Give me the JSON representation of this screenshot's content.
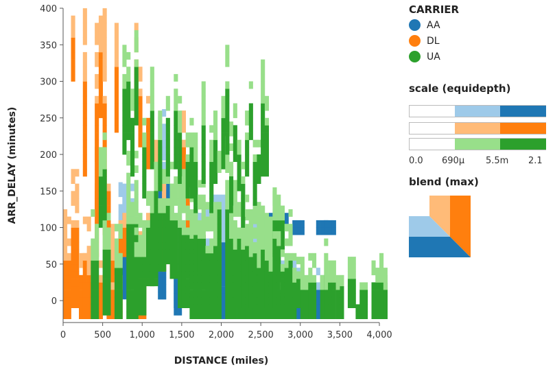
{
  "chart_data": {
    "type": "heatmap",
    "title": "",
    "xlabel": "DISTANCE (miles)",
    "ylabel": "ARR_DELAY (minutes)",
    "xlim": [
      0,
      4000
    ],
    "ylim": [
      -30,
      400
    ],
    "x_ticks": [
      0,
      500,
      1000,
      1500,
      2000,
      2500,
      3000,
      3500,
      4000
    ],
    "x_tick_labels": [
      "0",
      "500",
      "1,000",
      "1,500",
      "2,000",
      "2,500",
      "3,000",
      "3,500",
      "4,000"
    ],
    "y_ticks": [
      0,
      50,
      100,
      150,
      200,
      250,
      300,
      350,
      400
    ],
    "y_tick_labels": [
      "0",
      "50",
      "100",
      "150",
      "200",
      "250",
      "300",
      "350",
      "400"
    ],
    "grid": false,
    "series": [
      {
        "name": "AA",
        "color": "#1f77b4",
        "ranges": [
          [
            60,
            60,
            1,
            0
          ],
          [
            160,
            2,
            14,
            2
          ],
          [
            160,
            60,
            15,
            3
          ],
          [
            170,
            2,
            24,
            2
          ],
          [
            210,
            100,
            24,
            3
          ],
          [
            260,
            2,
            24,
            2
          ],
          [
            120,
            -10,
            28,
            3
          ],
          [
            80,
            -20,
            28,
            2
          ],
          [
            120,
            -10,
            33,
            2
          ],
          [
            70,
            -25,
            33,
            1
          ],
          [
            60,
            -25,
            36,
            2
          ],
          [
            120,
            -25,
            36,
            1
          ],
          [
            140,
            -25,
            38,
            3
          ],
          [
            40,
            -20,
            39,
            3
          ],
          [
            120,
            20,
            39,
            3
          ],
          [
            80,
            -25,
            42,
            2
          ],
          [
            75,
            -25,
            45,
            2
          ],
          [
            130,
            -25,
            47,
            3
          ],
          [
            60,
            -25,
            52,
            2
          ],
          [
            120,
            100,
            52,
            3
          ],
          [
            65,
            -25,
            54,
            2
          ],
          [
            120,
            100,
            54,
            3
          ],
          [
            60,
            -25,
            58,
            2
          ],
          [
            110,
            90,
            58,
            3
          ],
          [
            45,
            -25,
            64,
            2
          ],
          [
            110,
            90,
            64,
            3
          ],
          [
            110,
            90,
            66,
            3
          ]
        ]
      },
      {
        "name": "DL",
        "color": "#ff7f0e",
        "ranges": [
          [
            120,
            -25,
            0,
            2
          ],
          [
            180,
            -10,
            2,
            2
          ],
          [
            400,
            300,
            2,
            1
          ],
          [
            70,
            -25,
            4,
            2
          ],
          [
            110,
            -25,
            5,
            2
          ],
          [
            400,
            170,
            5,
            1
          ],
          [
            50,
            -25,
            6,
            3
          ],
          [
            60,
            -25,
            8,
            2
          ],
          [
            210,
            60,
            8,
            1
          ],
          [
            380,
            120,
            8,
            1
          ],
          [
            400,
            250,
            9,
            1
          ],
          [
            400,
            90,
            10,
            1
          ],
          [
            110,
            -25,
            11,
            2
          ],
          [
            190,
            100,
            11,
            1
          ],
          [
            30,
            -25,
            12,
            3
          ],
          [
            380,
            230,
            13,
            1
          ],
          [
            120,
            60,
            14,
            2
          ],
          [
            380,
            250,
            18,
            1
          ],
          [
            90,
            -25,
            19,
            2
          ],
          [
            330,
            210,
            19,
            1
          ],
          [
            120,
            30,
            20,
            2
          ],
          [
            290,
            180,
            21,
            1
          ],
          [
            220,
            100,
            23,
            1
          ],
          [
            160,
            40,
            25,
            1
          ],
          [
            120,
            30,
            27,
            1
          ],
          [
            260,
            130,
            30,
            1
          ],
          [
            200,
            100,
            31,
            1
          ],
          [
            120,
            40,
            35,
            1
          ],
          [
            110,
            40,
            39,
            1
          ],
          [
            100,
            20,
            43,
            1
          ],
          [
            60,
            20,
            46,
            1
          ]
        ]
      },
      {
        "name": "UA",
        "color": "#2ca02c",
        "ranges": [
          [
            120,
            -25,
            7,
            2
          ],
          [
            210,
            100,
            9,
            1
          ],
          [
            130,
            -20,
            10,
            2
          ],
          [
            230,
            110,
            10,
            1
          ],
          [
            100,
            -25,
            13,
            2
          ],
          [
            350,
            200,
            15,
            1
          ],
          [
            200,
            -25,
            16,
            3
          ],
          [
            360,
            220,
            16,
            1
          ],
          [
            300,
            170,
            17,
            1
          ],
          [
            120,
            -20,
            18,
            3
          ],
          [
            380,
            240,
            18,
            1
          ],
          [
            260,
            140,
            20,
            1
          ],
          [
            160,
            20,
            21,
            2
          ],
          [
            190,
            20,
            22,
            2
          ],
          [
            320,
            180,
            22,
            1
          ],
          [
            200,
            70,
            23,
            1
          ],
          [
            180,
            40,
            24,
            2
          ],
          [
            260,
            150,
            24,
            1
          ],
          [
            190,
            50,
            26,
            2
          ],
          [
            300,
            170,
            26,
            1
          ],
          [
            170,
            30,
            27,
            2
          ],
          [
            320,
            180,
            28,
            1
          ],
          [
            180,
            -10,
            29,
            2
          ],
          [
            280,
            160,
            29,
            1
          ],
          [
            170,
            -10,
            30,
            2
          ],
          [
            230,
            140,
            31,
            1
          ],
          [
            160,
            -25,
            32,
            2
          ],
          [
            260,
            140,
            32,
            1
          ],
          [
            120,
            40,
            33,
            3
          ],
          [
            240,
            120,
            33,
            1
          ],
          [
            160,
            -25,
            34,
            2
          ],
          [
            300,
            160,
            35,
            1
          ],
          [
            130,
            -25,
            36,
            3
          ],
          [
            240,
            120,
            37,
            1
          ],
          [
            140,
            -25,
            38,
            2
          ],
          [
            260,
            160,
            38,
            1
          ],
          [
            240,
            -25,
            39,
            1
          ],
          [
            300,
            180,
            40,
            1
          ],
          [
            240,
            -25,
            41,
            2
          ],
          [
            350,
            200,
            41,
            1
          ],
          [
            160,
            -25,
            42,
            2
          ],
          [
            200,
            120,
            42,
            1
          ],
          [
            130,
            -10,
            43,
            3
          ],
          [
            270,
            190,
            43,
            1
          ],
          [
            160,
            -25,
            44,
            2
          ],
          [
            240,
            150,
            44,
            1
          ],
          [
            120,
            -10,
            45,
            3
          ],
          [
            200,
            100,
            45,
            1
          ],
          [
            150,
            -25,
            46,
            2
          ],
          [
            260,
            170,
            46,
            1
          ],
          [
            100,
            -10,
            47,
            2
          ],
          [
            300,
            220,
            47,
            1
          ],
          [
            130,
            -25,
            48,
            2
          ],
          [
            230,
            130,
            48,
            1
          ],
          [
            90,
            -25,
            49,
            2
          ],
          [
            220,
            160,
            49,
            1
          ],
          [
            130,
            -10,
            50,
            2
          ],
          [
            340,
            170,
            50,
            1
          ],
          [
            120,
            -25,
            51,
            2
          ],
          [
            290,
            170,
            51,
            1
          ],
          [
            80,
            -10,
            52,
            2
          ],
          [
            150,
            60,
            53,
            3
          ],
          [
            160,
            -25,
            53,
            1
          ],
          [
            140,
            -25,
            54,
            1
          ],
          [
            20,
            -25,
            55,
            2
          ],
          [
            70,
            0,
            55,
            3
          ],
          [
            100,
            -25,
            56,
            1
          ],
          [
            120,
            -25,
            57,
            1
          ],
          [
            60,
            -25,
            58,
            1
          ],
          [
            60,
            -10,
            59,
            2
          ],
          [
            30,
            -25,
            60,
            3
          ],
          [
            60,
            -25,
            62,
            2
          ],
          [
            30,
            -25,
            65,
            1
          ],
          [
            80,
            -25,
            66,
            1
          ],
          [
            30,
            -25,
            66,
            2
          ],
          [
            60,
            -25,
            67,
            2
          ],
          [
            30,
            -25,
            69,
            2
          ],
          [
            30,
            -10,
            70,
            1
          ],
          [
            60,
            -10,
            72,
            2
          ],
          [
            -5,
            -25,
            74,
            1
          ],
          [
            40,
            -25,
            75,
            2
          ],
          [
            50,
            -25,
            78,
            3
          ],
          [
            -5,
            -25,
            79,
            2
          ],
          [
            60,
            -25,
            80,
            2
          ],
          [
            30,
            -25,
            81,
            1
          ]
        ]
      }
    ],
    "legend": {
      "title": "CARRIER",
      "placement": "top-right",
      "entries": [
        {
          "label": "AA",
          "color": "#1f77b4"
        },
        {
          "label": "DL",
          "color": "#ff7f0e"
        },
        {
          "label": "UA",
          "color": "#2ca02c"
        }
      ]
    },
    "scale_legend": {
      "title": "scale (equidepth)",
      "tick_labels": [
        "0.0",
        "690µ",
        "5.5m",
        "2.1"
      ],
      "ramps": [
        {
          "series": "AA",
          "colors": [
            "#ffffff",
            "#9ecae9",
            "#1f77b4"
          ]
        },
        {
          "series": "DL",
          "colors": [
            "#ffffff",
            "#ffbb78",
            "#ff7f0e"
          ]
        },
        {
          "series": "UA",
          "colors": [
            "#ffffff",
            "#98df8a",
            "#2ca02c"
          ]
        }
      ]
    },
    "blend_legend": {
      "title": "blend (max)"
    }
  }
}
